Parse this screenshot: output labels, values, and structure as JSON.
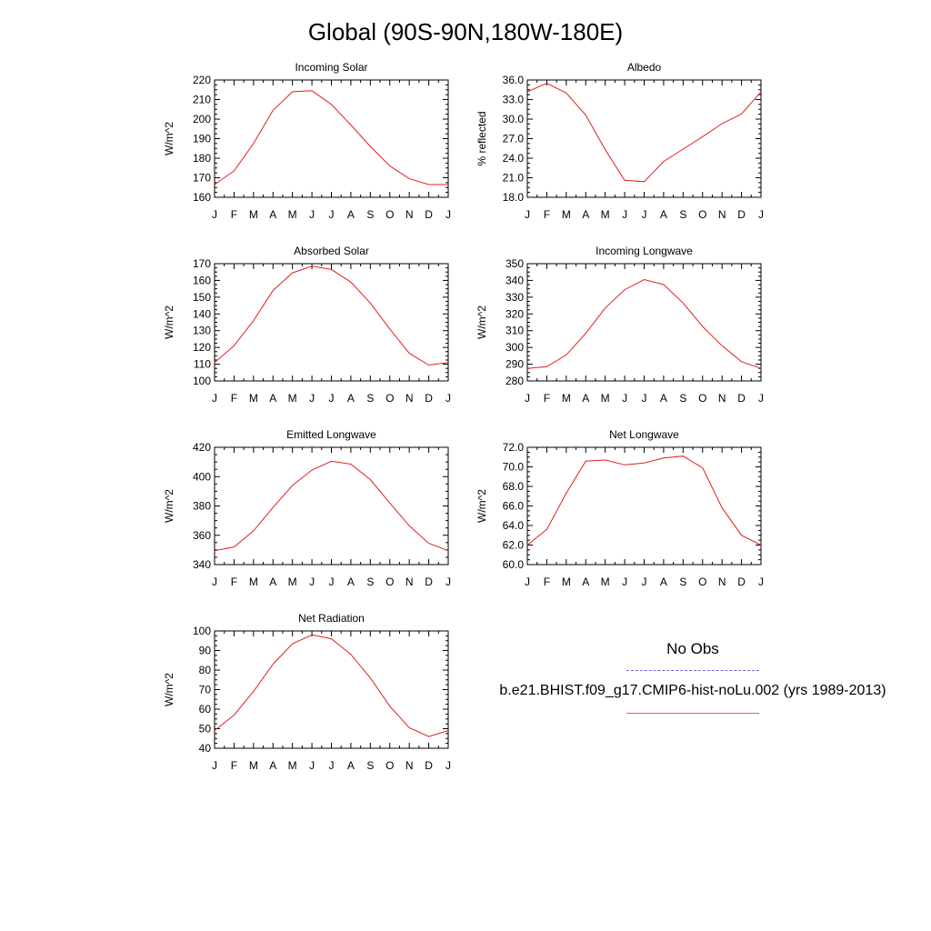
{
  "title": "Global (90S-90N,180W-180E)",
  "legend": {
    "obs_label": "No Obs",
    "case_label": "b.e21.BHIST.f09_g17.CMIP6-hist-noLu.002 (yrs 1989-2013)",
    "obs_color": "#6b6bd6",
    "case_color": "#e06060"
  },
  "chart_data": [
    {
      "type": "line",
      "title": "Incoming Solar",
      "ylabel": "W/m^2",
      "x": [
        "J",
        "F",
        "M",
        "A",
        "M",
        "J",
        "J",
        "A",
        "S",
        "O",
        "N",
        "D",
        "J"
      ],
      "ylim": [
        160,
        220
      ],
      "yticks": [
        "160",
        "170",
        "180",
        "190",
        "200",
        "210",
        "220"
      ],
      "series": [
        {
          "values": [
            166.5,
            173.5,
            187.5,
            204.5,
            214,
            214.5,
            207.5,
            197,
            186,
            176,
            169.5,
            166.5,
            166.5
          ],
          "color": "#e0201e"
        }
      ]
    },
    {
      "type": "line",
      "title": "Albedo",
      "ylabel": "% reflected",
      "x": [
        "J",
        "F",
        "M",
        "A",
        "M",
        "J",
        "J",
        "A",
        "S",
        "O",
        "N",
        "D",
        "J"
      ],
      "ylim": [
        18,
        36
      ],
      "yticks": [
        "18.0",
        "21.0",
        "24.0",
        "27.0",
        "30.0",
        "33.0",
        "36.0"
      ],
      "series": [
        {
          "values": [
            34.2,
            35.5,
            34.0,
            30.6,
            25.3,
            20.6,
            20.4,
            23.5,
            25.4,
            27.3,
            29.3,
            30.8,
            34.2
          ],
          "color": "#e0201e"
        }
      ]
    },
    {
      "type": "line",
      "title": "Absorbed Solar",
      "ylabel": "W/m^2",
      "x": [
        "J",
        "F",
        "M",
        "A",
        "M",
        "J",
        "J",
        "A",
        "S",
        "O",
        "N",
        "D",
        "J"
      ],
      "ylim": [
        100,
        170
      ],
      "yticks": [
        "100",
        "110",
        "120",
        "130",
        "140",
        "150",
        "160",
        "170"
      ],
      "series": [
        {
          "values": [
            111,
            121,
            136,
            154,
            164.5,
            168.5,
            166.5,
            159,
            146.5,
            131,
            116.5,
            109.5,
            111
          ],
          "color": "#e0201e"
        }
      ]
    },
    {
      "type": "line",
      "title": "Incoming Longwave",
      "ylabel": "W/m^2",
      "x": [
        "J",
        "F",
        "M",
        "A",
        "M",
        "J",
        "J",
        "A",
        "S",
        "O",
        "N",
        "D",
        "J"
      ],
      "ylim": [
        280,
        350
      ],
      "yticks": [
        "280",
        "290",
        "300",
        "310",
        "320",
        "330",
        "340",
        "350"
      ],
      "series": [
        {
          "values": [
            287.5,
            288.5,
            295.5,
            308.5,
            323.5,
            334.5,
            340.5,
            337.5,
            326.5,
            312.5,
            301,
            291.5,
            287.5
          ],
          "color": "#e0201e"
        }
      ]
    },
    {
      "type": "line",
      "title": "Emitted Longwave",
      "ylabel": "W/m^2",
      "x": [
        "J",
        "F",
        "M",
        "A",
        "M",
        "J",
        "J",
        "A",
        "S",
        "O",
        "N",
        "D",
        "J"
      ],
      "ylim": [
        340,
        420
      ],
      "yticks": [
        "340",
        "360",
        "380",
        "400",
        "420"
      ],
      "series": [
        {
          "values": [
            349.5,
            352,
            363,
            379,
            394,
            404.5,
            410.5,
            408.5,
            398,
            382,
            366.5,
            354.5,
            349.5
          ],
          "color": "#e0201e"
        }
      ]
    },
    {
      "type": "line",
      "title": "Net Longwave",
      "ylabel": "W/m^2",
      "x": [
        "J",
        "F",
        "M",
        "A",
        "M",
        "J",
        "J",
        "A",
        "S",
        "O",
        "N",
        "D",
        "J"
      ],
      "ylim": [
        60,
        72
      ],
      "yticks": [
        "60.0",
        "62.0",
        "64.0",
        "66.0",
        "68.0",
        "70.0",
        "72.0"
      ],
      "series": [
        {
          "values": [
            62.0,
            63.6,
            67.3,
            70.6,
            70.7,
            70.2,
            70.4,
            70.9,
            71.1,
            69.9,
            65.8,
            63.0,
            62.0
          ],
          "color": "#e0201e"
        }
      ]
    },
    {
      "type": "line",
      "title": "Net Radiation",
      "ylabel": "W/m^2",
      "x": [
        "J",
        "F",
        "M",
        "A",
        "M",
        "J",
        "J",
        "A",
        "S",
        "O",
        "N",
        "D",
        "J"
      ],
      "ylim": [
        40,
        100
      ],
      "yticks": [
        "40",
        "50",
        "60",
        "70",
        "80",
        "90",
        "100"
      ],
      "series": [
        {
          "values": [
            49,
            57,
            69,
            83,
            93.5,
            98,
            96,
            88,
            76,
            61.5,
            50.5,
            46,
            49
          ],
          "color": "#e0201e"
        }
      ]
    }
  ]
}
